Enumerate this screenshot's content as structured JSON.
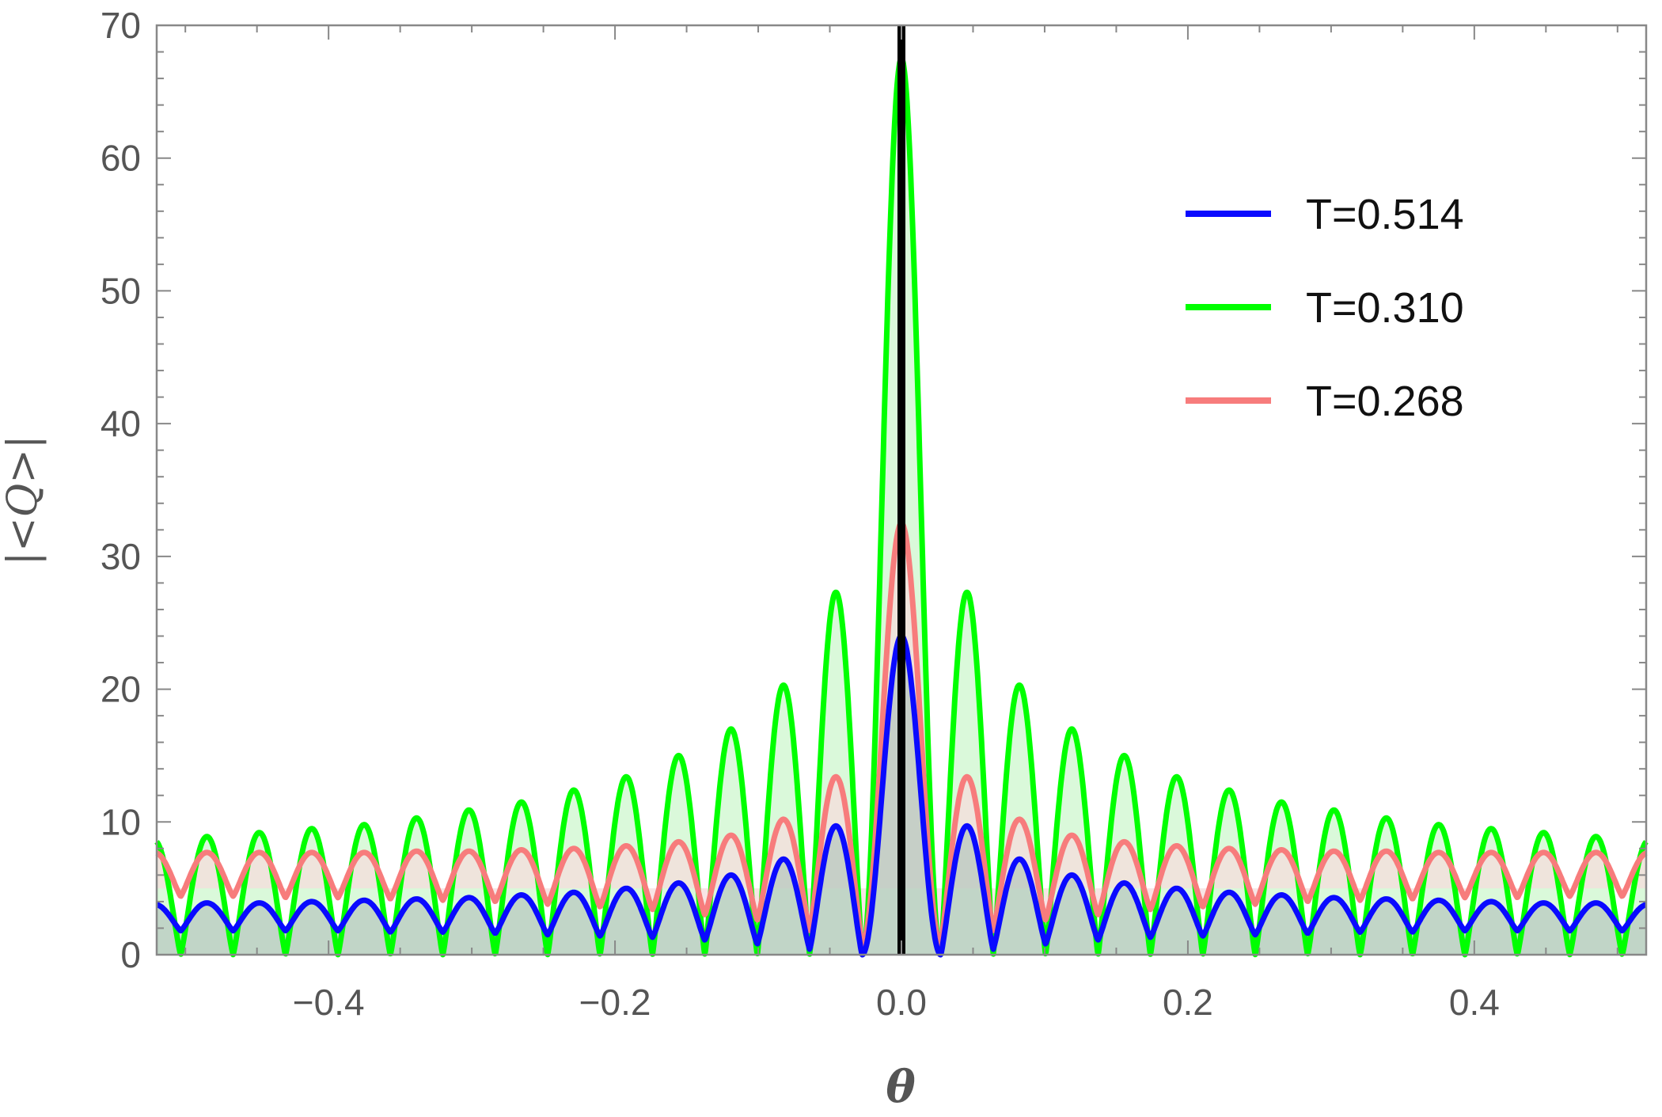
{
  "chart_data": {
    "type": "area",
    "xlabel": "θ",
    "ylabel": "|<Q>|",
    "xlim": [
      -0.52,
      0.52
    ],
    "ylim": [
      0,
      70
    ],
    "xticks": [
      -0.4,
      -0.2,
      0.0,
      0.2,
      0.4
    ],
    "xtick_labels": [
      "−0.4",
      "−0.2",
      "0.0",
      "0.2",
      "0.4"
    ],
    "yticks": [
      0,
      10,
      20,
      30,
      40,
      50,
      60,
      70
    ],
    "ytick_labels": [
      "0",
      "10",
      "20",
      "30",
      "40",
      "50",
      "60",
      "70"
    ],
    "grid": false,
    "legend_position": "top-right",
    "vertical_line": {
      "x": 0.0,
      "color": "#000000"
    },
    "lobe_period": 0.0366,
    "series": [
      {
        "name": "T=0.514",
        "color": "#0a0aff",
        "fill": "#b8c8c0",
        "floor": 0.0,
        "peaks": [
          24.0,
          9.7,
          7.2,
          6.0,
          5.4,
          5.0,
          4.7,
          4.5,
          4.3,
          4.2,
          4.1,
          4.0,
          3.9,
          3.9,
          3.8,
          3.8
        ],
        "troughs": [
          0.0,
          0.4,
          0.8,
          1.1,
          1.3,
          1.4,
          1.5,
          1.6,
          1.7,
          1.7,
          1.8,
          1.8,
          1.8,
          1.8,
          1.8
        ]
      },
      {
        "name": "T=0.310",
        "color": "#00ff00",
        "fill": "#cdf7cd",
        "floor": 0.0,
        "peaks": [
          67.5,
          27.3,
          20.3,
          17.0,
          15.0,
          13.4,
          12.4,
          11.5,
          10.9,
          10.3,
          9.8,
          9.5,
          9.2,
          8.9,
          8.6,
          8.4
        ],
        "troughs": [
          0.0,
          0.0,
          0.0,
          0.0,
          0.0,
          0.0,
          0.0,
          0.0,
          0.0,
          0.0,
          0.0,
          0.0,
          0.0,
          0.0,
          0.0
        ]
      },
      {
        "name": "T=0.268",
        "color": "#f77c7c",
        "fill": "#f5dcdc",
        "floor": 5.0,
        "peaks": [
          32.5,
          13.4,
          10.2,
          9.0,
          8.5,
          8.2,
          8.0,
          7.9,
          7.8,
          7.8,
          7.7,
          7.7,
          7.7,
          7.7,
          7.7,
          7.7
        ],
        "troughs": [
          0.8,
          1.8,
          2.6,
          3.0,
          3.4,
          3.6,
          3.8,
          4.0,
          4.1,
          4.2,
          4.3,
          4.3,
          4.4,
          4.4,
          4.5
        ]
      }
    ]
  }
}
